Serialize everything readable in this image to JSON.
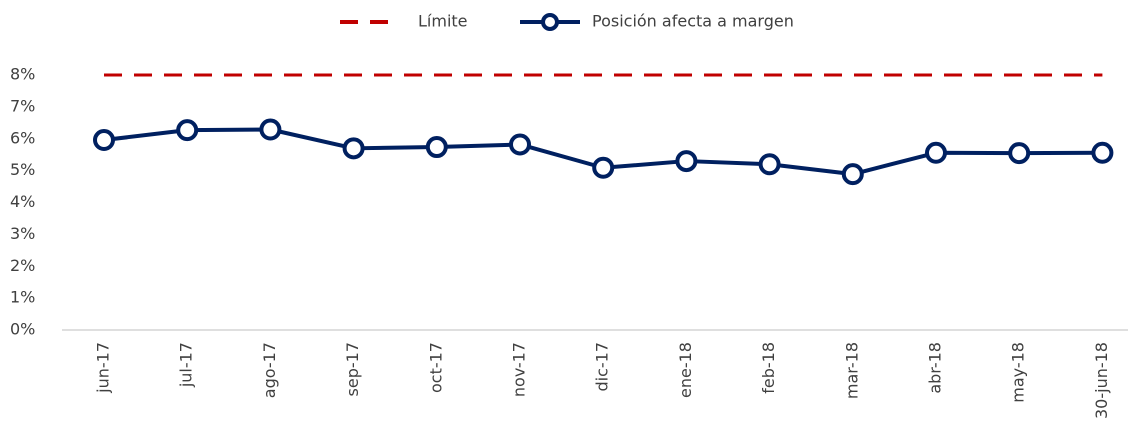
{
  "chart_data": {
    "type": "line",
    "categories": [
      "jun-17",
      "jul-17",
      "ago-17",
      "sep-17",
      "oct-17",
      "nov-17",
      "dic-17",
      "ene-18",
      "feb-18",
      "mar-18",
      "abr-18",
      "may-18",
      "30-jun-18"
    ],
    "series": [
      {
        "name": "Límite",
        "color": "#c00000",
        "dashed": true,
        "values": [
          8,
          8,
          8,
          8,
          8,
          8,
          8,
          8,
          8,
          8,
          8,
          8,
          8
        ]
      },
      {
        "name": "Posición afecta a margen",
        "color": "#002060",
        "markers": true,
        "values": [
          5.96,
          6.27,
          6.29,
          5.7,
          5.74,
          5.82,
          5.09,
          5.3,
          5.2,
          4.89,
          5.56,
          5.55,
          5.56
        ]
      }
    ],
    "ylim": [
      0,
      8
    ],
    "yticks": [
      {
        "value": 0,
        "label": "0%"
      },
      {
        "value": 1,
        "label": "1%"
      },
      {
        "value": 2,
        "label": "2%"
      },
      {
        "value": 3,
        "label": "3%"
      },
      {
        "value": 4,
        "label": "4%"
      },
      {
        "value": 5,
        "label": "5%"
      },
      {
        "value": 6,
        "label": "6%"
      },
      {
        "value": 7,
        "label": "7%"
      },
      {
        "value": 8,
        "label": "8%"
      }
    ],
    "grid": false,
    "legend": "top"
  }
}
